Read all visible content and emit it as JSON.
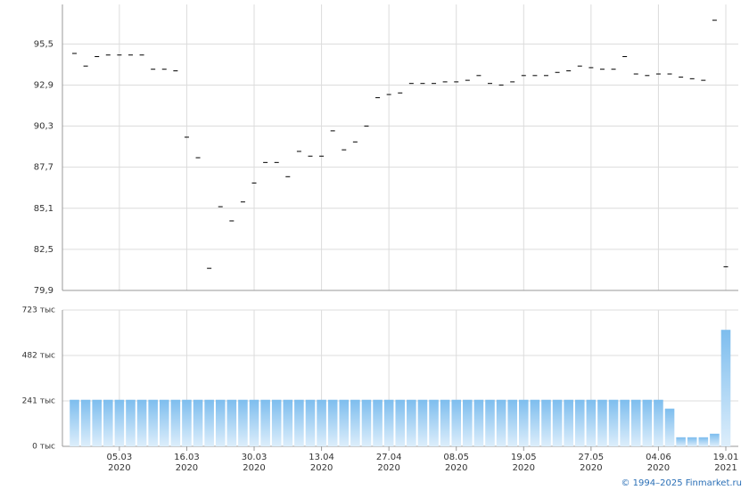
{
  "chart_data": [
    {
      "type": "marker",
      "ylim": [
        79.9,
        98.0
      ],
      "yticks": [
        {
          "value": 79.9,
          "label": "79,9"
        },
        {
          "value": 82.5,
          "label": "82,5"
        },
        {
          "value": 85.1,
          "label": "85,1"
        },
        {
          "value": 87.7,
          "label": "87,7"
        },
        {
          "value": 90.3,
          "label": "90,3"
        },
        {
          "value": 92.9,
          "label": "92,9"
        },
        {
          "value": 95.5,
          "label": "95,5"
        }
      ],
      "grid": true,
      "color": "#000000",
      "values": [
        94.9,
        94.1,
        94.7,
        94.8,
        94.8,
        94.8,
        94.8,
        93.9,
        93.9,
        93.8,
        89.6,
        88.3,
        81.3,
        85.2,
        84.3,
        85.5,
        86.7,
        88.0,
        88.0,
        87.1,
        88.7,
        88.4,
        88.4,
        90.0,
        88.8,
        89.3,
        90.3,
        92.1,
        92.3,
        92.4,
        93.0,
        93.0,
        93.0,
        93.1,
        93.1,
        93.2,
        93.5,
        93.0,
        92.9,
        93.1,
        93.5,
        93.5,
        93.5,
        93.7,
        93.8,
        94.1,
        94.0,
        93.9,
        93.9,
        94.7,
        93.6,
        93.5,
        93.6,
        93.6,
        93.4,
        93.3,
        93.2,
        97.0,
        81.4
      ]
    },
    {
      "type": "bar",
      "ylim": [
        0,
        723
      ],
      "yticks": [
        {
          "value": 0,
          "label": "0 тыс"
        },
        {
          "value": 241,
          "label": "241 тыс"
        },
        {
          "value": 482,
          "label": "482 тыс"
        },
        {
          "value": 723,
          "label": "723 тыс"
        }
      ],
      "grid": true,
      "color": "#7dbdee",
      "color_bottom": "#ddeefb",
      "categories": [
        null,
        null,
        null,
        null,
        "05.03",
        null,
        null,
        null,
        null,
        null,
        "16.03",
        null,
        null,
        null,
        null,
        null,
        "30.03",
        null,
        null,
        null,
        null,
        null,
        "13.04",
        null,
        null,
        null,
        null,
        null,
        "27.04",
        null,
        null,
        null,
        null,
        null,
        "08.05",
        null,
        null,
        null,
        null,
        null,
        "19.05",
        null,
        null,
        null,
        null,
        null,
        "27.05",
        null,
        null,
        null,
        null,
        null,
        "04.06",
        null,
        null,
        null,
        null,
        null,
        "19.01"
      ],
      "category_years": [
        null,
        null,
        null,
        null,
        "2020",
        null,
        null,
        null,
        null,
        null,
        "2020",
        null,
        null,
        null,
        null,
        null,
        "2020",
        null,
        null,
        null,
        null,
        null,
        "2020",
        null,
        null,
        null,
        null,
        null,
        "2020",
        null,
        null,
        null,
        null,
        null,
        "2020",
        null,
        null,
        null,
        null,
        null,
        "2020",
        null,
        null,
        null,
        null,
        null,
        "2020",
        null,
        null,
        null,
        null,
        null,
        "2020",
        null,
        null,
        null,
        null,
        null,
        "2021"
      ],
      "values": [
        247,
        247,
        247,
        247,
        247,
        247,
        247,
        247,
        247,
        247,
        247,
        247,
        247,
        247,
        247,
        247,
        247,
        247,
        247,
        247,
        247,
        247,
        247,
        247,
        247,
        247,
        247,
        247,
        247,
        247,
        247,
        247,
        247,
        247,
        247,
        247,
        247,
        247,
        247,
        247,
        247,
        247,
        247,
        247,
        247,
        247,
        247,
        247,
        247,
        247,
        247,
        247,
        247,
        200,
        48,
        48,
        48,
        67,
        618
      ]
    }
  ],
  "footer": "© 1994–2025 Finmarket.ru"
}
